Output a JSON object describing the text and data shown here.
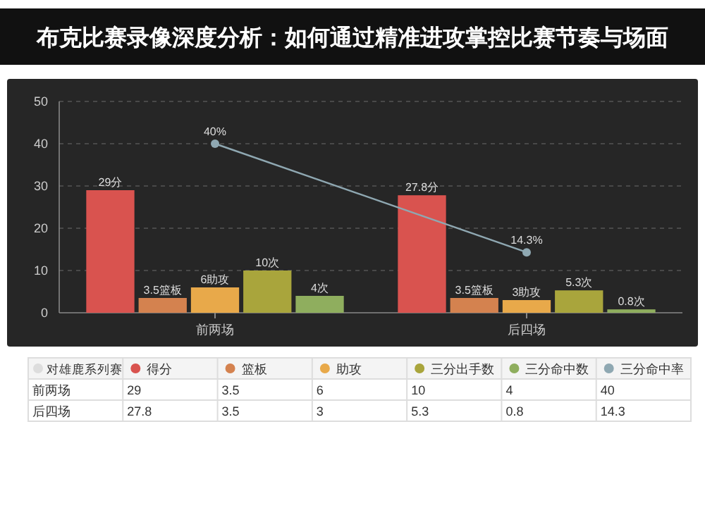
{
  "chart_data": {
    "type": "bar",
    "title": "布克比赛录像深度分析：如何通过精准进攻掌控比赛节奏与场面",
    "legend_title": "对雄鹿系列赛",
    "categories": [
      "前两场",
      "后四场"
    ],
    "series": [
      {
        "name": "得分",
        "color": "#d9534f",
        "values": [
          29,
          27.8
        ],
        "value_labels": [
          "29分",
          "27.8分"
        ]
      },
      {
        "name": "篮板",
        "color": "#d4824f",
        "values": [
          3.5,
          3.5
        ],
        "value_labels": [
          "3.5篮板",
          "3.5篮板"
        ]
      },
      {
        "name": "助攻",
        "color": "#e8a94a",
        "values": [
          6,
          3
        ],
        "value_labels": [
          "6助攻",
          "3助攻"
        ]
      },
      {
        "name": "三分出手数",
        "color": "#a9a53c",
        "values": [
          10,
          5.3
        ],
        "value_labels": [
          "10次",
          "5.3次"
        ]
      },
      {
        "name": "三分命中数",
        "color": "#8fae5e",
        "values": [
          4,
          0.8
        ],
        "value_labels": [
          "4次",
          "0.8次"
        ]
      },
      {
        "name": "三分命中率",
        "type": "line",
        "color": "#8fa8b2",
        "values": [
          40,
          14.3
        ],
        "value_labels": [
          "40%",
          "14.3%"
        ],
        "marker": "circle"
      }
    ],
    "annotations": [
      "29",
      "3.5",
      "6",
      "10",
      "4",
      "40",
      "27.8",
      "3.5",
      "3",
      "5.3",
      "0.8",
      "14.3"
    ],
    "ylim": [
      0,
      50
    ],
    "yticks": [
      0,
      10,
      20,
      30,
      40,
      50
    ],
    "grid": "y",
    "legend": "bottom"
  }
}
